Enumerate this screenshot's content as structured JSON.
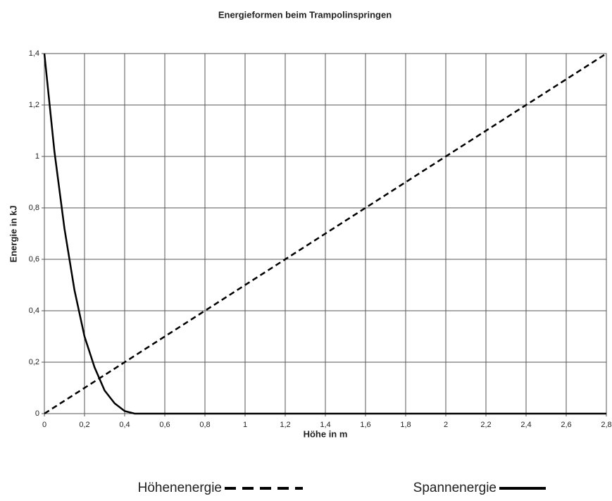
{
  "chart_data": {
    "type": "line",
    "title": "Energieformen beim Trampolinspringen",
    "xlabel": "Höhe in m",
    "ylabel": "Energie in kJ",
    "xlim": [
      0,
      2.8
    ],
    "ylim": [
      0,
      1.4
    ],
    "xticks": [
      0,
      {
        "value": 0.2,
        "label": "0,2"
      },
      {
        "value": 0.4,
        "label": "0,4"
      },
      {
        "value": 0.6,
        "label": "0,6"
      },
      {
        "value": 0.8,
        "label": "0,8"
      },
      1,
      {
        "value": 1.2,
        "label": "1,2"
      },
      {
        "value": 1.4,
        "label": "1,4"
      },
      {
        "value": 1.6,
        "label": "1,6"
      },
      {
        "value": 1.8,
        "label": "1,8"
      },
      2,
      {
        "value": 2.2,
        "label": "2,2"
      },
      {
        "value": 2.4,
        "label": "2,4"
      },
      {
        "value": 2.6,
        "label": "2,6"
      },
      {
        "value": 2.8,
        "label": "2,8"
      }
    ],
    "yticks": [
      0,
      {
        "value": 0.2,
        "label": "0,2"
      },
      {
        "value": 0.4,
        "label": "0,4"
      },
      {
        "value": 0.6,
        "label": "0,6"
      },
      {
        "value": 0.8,
        "label": "0,8"
      },
      1,
      {
        "value": 1.2,
        "label": "1,2"
      },
      {
        "value": 1.4,
        "label": "1,4"
      }
    ],
    "grid": true,
    "legend": "bottom",
    "series": [
      {
        "name": "Höhenenergie",
        "color": "#000000",
        "dashed": true,
        "x": [
          0,
          2.8
        ],
        "values": [
          0,
          1.4
        ]
      },
      {
        "name": "Spannenergie",
        "color": "#000000",
        "dashed": false,
        "x": [
          0,
          0.05,
          0.1,
          0.15,
          0.2,
          0.25,
          0.3,
          0.35,
          0.4,
          0.45,
          0.5,
          2.8
        ],
        "values": [
          1.4,
          1.02,
          0.72,
          0.48,
          0.3,
          0.18,
          0.09,
          0.04,
          0.01,
          0,
          0,
          0
        ]
      }
    ]
  }
}
